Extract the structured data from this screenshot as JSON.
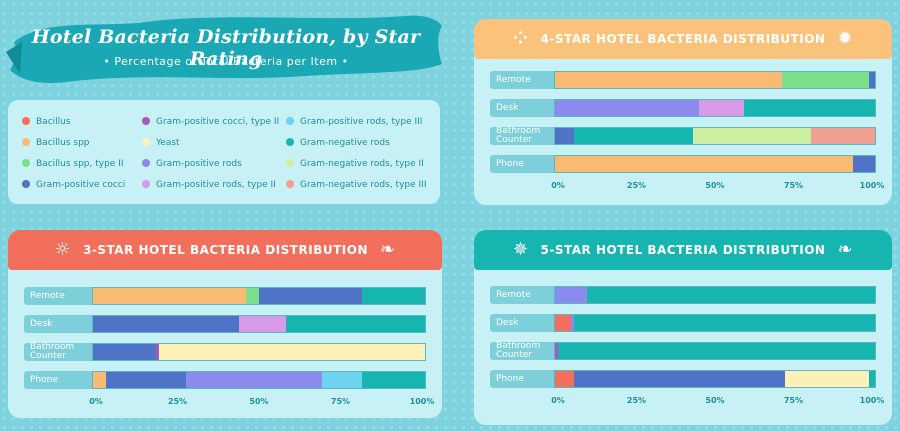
{
  "header": {
    "title": "Hotel Bacteria Distribution, by Star Rating",
    "subtitle": "• Percentage of Total Bacteria per Item •"
  },
  "colors": {
    "Bacillus": "#f26f5b",
    "Bacillus spp": "#f9bb72",
    "Bacillus spp, type II": "#7be08c",
    "Gram-positive cocci": "#4f74c7",
    "Gram-positive cocci, type II": "#a25bbd",
    "Yeast": "#fdf1b8",
    "Gram-positive rods": "#8b8bef",
    "Gram-positive rods, type II": "#d79ae8",
    "Gram-positive rods, type III": "#6dd3f0",
    "Gram-negative rods": "#17b5b0",
    "Gram-negative rods, type II": "#cdeea0",
    "Gram-negative rods, type III": "#f0a093"
  },
  "legend": [
    "Bacillus",
    "Bacillus spp",
    "Bacillus spp, type II",
    "Gram-positive cocci",
    "Gram-positive cocci, type II",
    "Yeast",
    "Gram-positive rods",
    "Gram-positive rods, type II",
    "Gram-positive rods, type III",
    "Gram-negative rods",
    "Gram-negative rods, type II",
    "Gram-negative rods, type III"
  ],
  "chart_data": [
    {
      "type": "bar",
      "stacked": true,
      "orientation": "horizontal",
      "title": "4-STAR HOTEL BACTERIA DISTRIBUTION",
      "header_color": "#fbc27c",
      "icons": [
        "cell-cluster-icon",
        "sun-bacteria-icon"
      ],
      "categories": [
        "Remote",
        "Desk",
        "Bathroom Counter",
        "Phone"
      ],
      "xlim": [
        0,
        100
      ],
      "ticks": [
        "0%",
        "25%",
        "50%",
        "75%",
        "100%"
      ],
      "series": [
        {
          "name": "Bacillus",
          "values": [
            0,
            0,
            0,
            0
          ]
        },
        {
          "name": "Bacillus spp",
          "values": [
            71,
            0,
            0,
            93
          ]
        },
        {
          "name": "Bacillus spp, type II",
          "values": [
            27,
            0,
            0,
            0
          ]
        },
        {
          "name": "Gram-positive cocci",
          "values": [
            2,
            0,
            6,
            7
          ]
        },
        {
          "name": "Gram-positive cocci, type II",
          "values": [
            0,
            0,
            0,
            0
          ]
        },
        {
          "name": "Yeast",
          "values": [
            0,
            0,
            0,
            0
          ]
        },
        {
          "name": "Gram-positive rods",
          "values": [
            0,
            45,
            0,
            0
          ]
        },
        {
          "name": "Gram-positive rods, type II",
          "values": [
            0,
            14,
            0,
            0
          ]
        },
        {
          "name": "Gram-positive rods, type III",
          "values": [
            0,
            0,
            0,
            0
          ]
        },
        {
          "name": "Gram-negative rods",
          "values": [
            0,
            41,
            37,
            0
          ]
        },
        {
          "name": "Gram-negative rods, type II",
          "values": [
            0,
            0,
            37,
            0
          ]
        },
        {
          "name": "Gram-negative rods, type III",
          "values": [
            0,
            0,
            20,
            0
          ]
        }
      ]
    },
    {
      "type": "bar",
      "stacked": true,
      "orientation": "horizontal",
      "title": "3-STAR HOTEL BACTERIA DISTRIBUTION",
      "header_color": "#f26f5b",
      "icons": [
        "virus-face-icon",
        "worm-bacteria-icon"
      ],
      "categories": [
        "Remote",
        "Desk",
        "Bathroom Counter",
        "Phone"
      ],
      "xlim": [
        0,
        100
      ],
      "ticks": [
        "0%",
        "25%",
        "50%",
        "75%",
        "100%"
      ],
      "series": [
        {
          "name": "Bacillus",
          "values": [
            0,
            0,
            0,
            0
          ]
        },
        {
          "name": "Bacillus spp",
          "values": [
            46,
            0,
            0,
            4
          ]
        },
        {
          "name": "Bacillus spp, type II",
          "values": [
            4,
            0,
            0,
            0
          ]
        },
        {
          "name": "Gram-positive cocci",
          "values": [
            31,
            44,
            19,
            24
          ]
        },
        {
          "name": "Gram-positive cocci, type II",
          "values": [
            0,
            0,
            1,
            0
          ]
        },
        {
          "name": "Yeast",
          "values": [
            0,
            0,
            80,
            0
          ]
        },
        {
          "name": "Gram-positive rods",
          "values": [
            0,
            0,
            0,
            41
          ]
        },
        {
          "name": "Gram-positive rods, type II",
          "values": [
            0,
            14,
            0,
            0
          ]
        },
        {
          "name": "Gram-positive rods, type III",
          "values": [
            0,
            0,
            0,
            12
          ]
        },
        {
          "name": "Gram-negative rods",
          "values": [
            19,
            42,
            0,
            19
          ]
        },
        {
          "name": "Gram-negative rods, type II",
          "values": [
            0,
            0,
            0,
            0
          ]
        },
        {
          "name": "Gram-negative rods, type III",
          "values": [
            0,
            0,
            0,
            0
          ]
        }
      ]
    },
    {
      "type": "bar",
      "stacked": true,
      "orientation": "horizontal",
      "title": "5-STAR HOTEL BACTERIA DISTRIBUTION",
      "header_color": "#17b5b0",
      "icons": [
        "spiky-virus-icon",
        "worm-bacteria-icon"
      ],
      "categories": [
        "Remote",
        "Desk",
        "Bathroom Counter",
        "Phone"
      ],
      "xlim": [
        0,
        100
      ],
      "ticks": [
        "0%",
        "25%",
        "50%",
        "75%",
        "100%"
      ],
      "series": [
        {
          "name": "Bacillus",
          "values": [
            0,
            5,
            0,
            6
          ]
        },
        {
          "name": "Bacillus spp",
          "values": [
            0,
            0,
            0,
            0
          ]
        },
        {
          "name": "Bacillus spp, type II",
          "values": [
            0,
            0,
            0,
            0
          ]
        },
        {
          "name": "Gram-positive cocci",
          "values": [
            0,
            0,
            0,
            66
          ]
        },
        {
          "name": "Gram-positive cocci, type II",
          "values": [
            0,
            0,
            1,
            0
          ]
        },
        {
          "name": "Yeast",
          "values": [
            0,
            0,
            0,
            26
          ]
        },
        {
          "name": "Gram-positive rods",
          "values": [
            10,
            1,
            0,
            0
          ]
        },
        {
          "name": "Gram-positive rods, type II",
          "values": [
            0,
            0,
            0,
            0
          ]
        },
        {
          "name": "Gram-positive rods, type III",
          "values": [
            0,
            0,
            0,
            0
          ]
        },
        {
          "name": "Gram-negative rods",
          "values": [
            90,
            94,
            99,
            2
          ]
        },
        {
          "name": "Gram-negative rods, type II",
          "values": [
            0,
            0,
            0,
            0
          ]
        },
        {
          "name": "Gram-negative rods, type III",
          "values": [
            0,
            0,
            0,
            0
          ]
        }
      ]
    }
  ]
}
